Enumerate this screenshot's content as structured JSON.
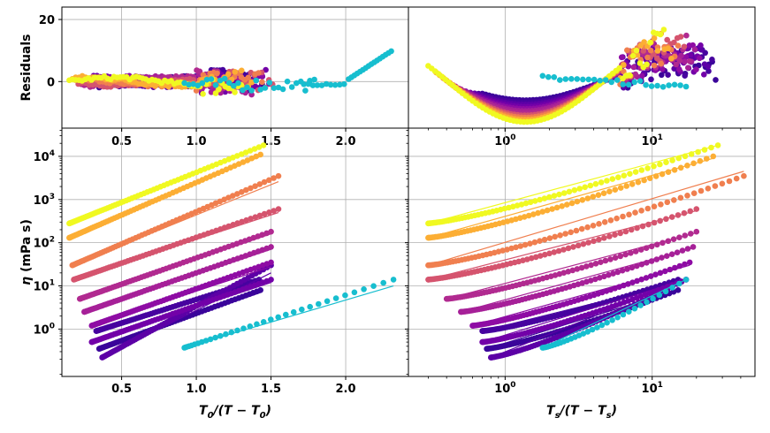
{
  "colors": {
    "cyan": "#17becf",
    "series": [
      "#f0f921",
      "#fcae34",
      "#f07f4f",
      "#d5546e",
      "#b12a90",
      "#a62098",
      "#8e0ca4",
      "#7201a8",
      "#5c01a6",
      "#47039f",
      "#3a049a"
    ]
  },
  "chart_data": [
    {
      "id": "residuals-left",
      "type": "scatter",
      "xscale": "linear",
      "yscale": "linear",
      "xlim": [
        0.1,
        2.42
      ],
      "ylim": [
        -15,
        24
      ],
      "xticks": [
        "0.5",
        "1.0",
        "1.5",
        "2.0"
      ],
      "xtick_values": [
        0.5,
        1.0,
        1.5,
        2.0
      ],
      "yticks": [
        "0",
        "20"
      ],
      "ytick_values": [
        0,
        20
      ],
      "ylabel": "Residuals",
      "grid": true
    },
    {
      "id": "residuals-right",
      "type": "scatter",
      "xscale": "log",
      "yscale": "linear",
      "xlim": [
        0.22,
        50
      ],
      "ylim": [
        -15,
        24
      ],
      "xticks": [
        "10^0",
        "10^1"
      ],
      "xtick_values": [
        1,
        10
      ],
      "grid": true
    },
    {
      "id": "viscosity-left",
      "type": "scatter",
      "xscale": "linear",
      "yscale": "log",
      "xlim": [
        0.1,
        2.42
      ],
      "ylim": [
        0.08,
        45000
      ],
      "xticks": [
        "0.5",
        "1.0",
        "1.5",
        "2.0"
      ],
      "xtick_values": [
        0.5,
        1.0,
        1.5,
        2.0
      ],
      "yticks": [
        "10^0",
        "10^1",
        "10^2",
        "10^3",
        "10^4"
      ],
      "ytick_values": [
        1,
        10,
        100,
        1000,
        10000
      ],
      "xlabel": "T_0/(T − T_0)",
      "ylabel": "η (mPa s)",
      "grid": true,
      "series": [
        {
          "x_range": [
            0.15,
            1.45
          ],
          "y_range": [
            280,
            18000
          ],
          "fit_end": 18000
        },
        {
          "x_range": [
            0.15,
            1.43
          ],
          "y_range": [
            130,
            11000
          ],
          "fit_end": 10000
        },
        {
          "x_range": [
            0.17,
            1.55
          ],
          "y_range": [
            30,
            3500
          ],
          "fit_end": 2600
        },
        {
          "x_range": [
            0.18,
            1.55
          ],
          "y_range": [
            14,
            600
          ],
          "fit_end": 500
        },
        {
          "x_range": [
            0.22,
            1.5
          ],
          "y_range": [
            5,
            180
          ],
          "fit_end": 160
        },
        {
          "x_range": [
            0.25,
            1.5
          ],
          "y_range": [
            2.5,
            80
          ],
          "fit_end": 70
        },
        {
          "x_range": [
            0.3,
            1.5
          ],
          "y_range": [
            1.2,
            35
          ],
          "fit_end": 28
        },
        {
          "x_range": [
            0.3,
            1.5
          ],
          "y_range": [
            0.5,
            14
          ],
          "fit_end": 12
        },
        {
          "x_range": [
            0.37,
            1.5
          ],
          "y_range": [
            0.22,
            30
          ],
          "fit_end": 20
        },
        {
          "x_range": [
            0.33,
            1.42
          ],
          "y_range": [
            0.9,
            14
          ],
          "fit_end": 12
        },
        {
          "x_range": [
            0.35,
            1.43
          ],
          "y_range": [
            0.35,
            8
          ],
          "fit_end": 7
        }
      ],
      "cyan_series": {
        "x_range": [
          0.92,
          2.32
        ],
        "y_range": [
          0.37,
          14
        ],
        "fit_end": 10
      }
    },
    {
      "id": "viscosity-right",
      "type": "scatter",
      "xscale": "log",
      "yscale": "log",
      "xlim": [
        0.22,
        50
      ],
      "ylim": [
        0.08,
        45000
      ],
      "xticks": [
        "10^0",
        "10^1"
      ],
      "xtick_values": [
        1,
        10
      ],
      "yticks": [
        "10^0",
        "10^1",
        "10^2",
        "10^3",
        "10^4"
      ],
      "ytick_values": [
        1,
        10,
        100,
        1000,
        10000
      ],
      "xlabel": "T_s/(T − T_s)",
      "grid": true,
      "series": [
        {
          "x_range": [
            0.3,
            28
          ],
          "y_range": [
            280,
            18000
          ],
          "fit_end": 18000
        },
        {
          "x_range": [
            0.3,
            26
          ],
          "y_range": [
            130,
            10000
          ],
          "fit_end": 9000
        },
        {
          "x_range": [
            0.3,
            42
          ],
          "y_range": [
            30,
            3500
          ],
          "fit_end": 4500
        },
        {
          "x_range": [
            0.3,
            20
          ],
          "y_range": [
            14,
            600
          ],
          "fit_end": 550
        },
        {
          "x_range": [
            0.4,
            20
          ],
          "y_range": [
            5,
            180
          ],
          "fit_end": 170
        },
        {
          "x_range": [
            0.5,
            19
          ],
          "y_range": [
            2.5,
            80
          ],
          "fit_end": 75
        },
        {
          "x_range": [
            0.6,
            18
          ],
          "y_range": [
            1.2,
            35
          ],
          "fit_end": 30
        },
        {
          "x_range": [
            0.7,
            17
          ],
          "y_range": [
            0.5,
            14
          ],
          "fit_end": 14
        },
        {
          "x_range": [
            0.8,
            17
          ],
          "y_range": [
            0.22,
            14
          ],
          "fit_end": 14
        },
        {
          "x_range": [
            0.7,
            15
          ],
          "y_range": [
            0.9,
            14
          ],
          "fit_end": 12
        },
        {
          "x_range": [
            0.75,
            15
          ],
          "y_range": [
            0.35,
            8
          ],
          "fit_end": 8
        }
      ],
      "cyan_series": {
        "x_range": [
          1.8,
          17
        ],
        "y_range": [
          0.37,
          14
        ],
        "fit_end": 14
      }
    }
  ]
}
